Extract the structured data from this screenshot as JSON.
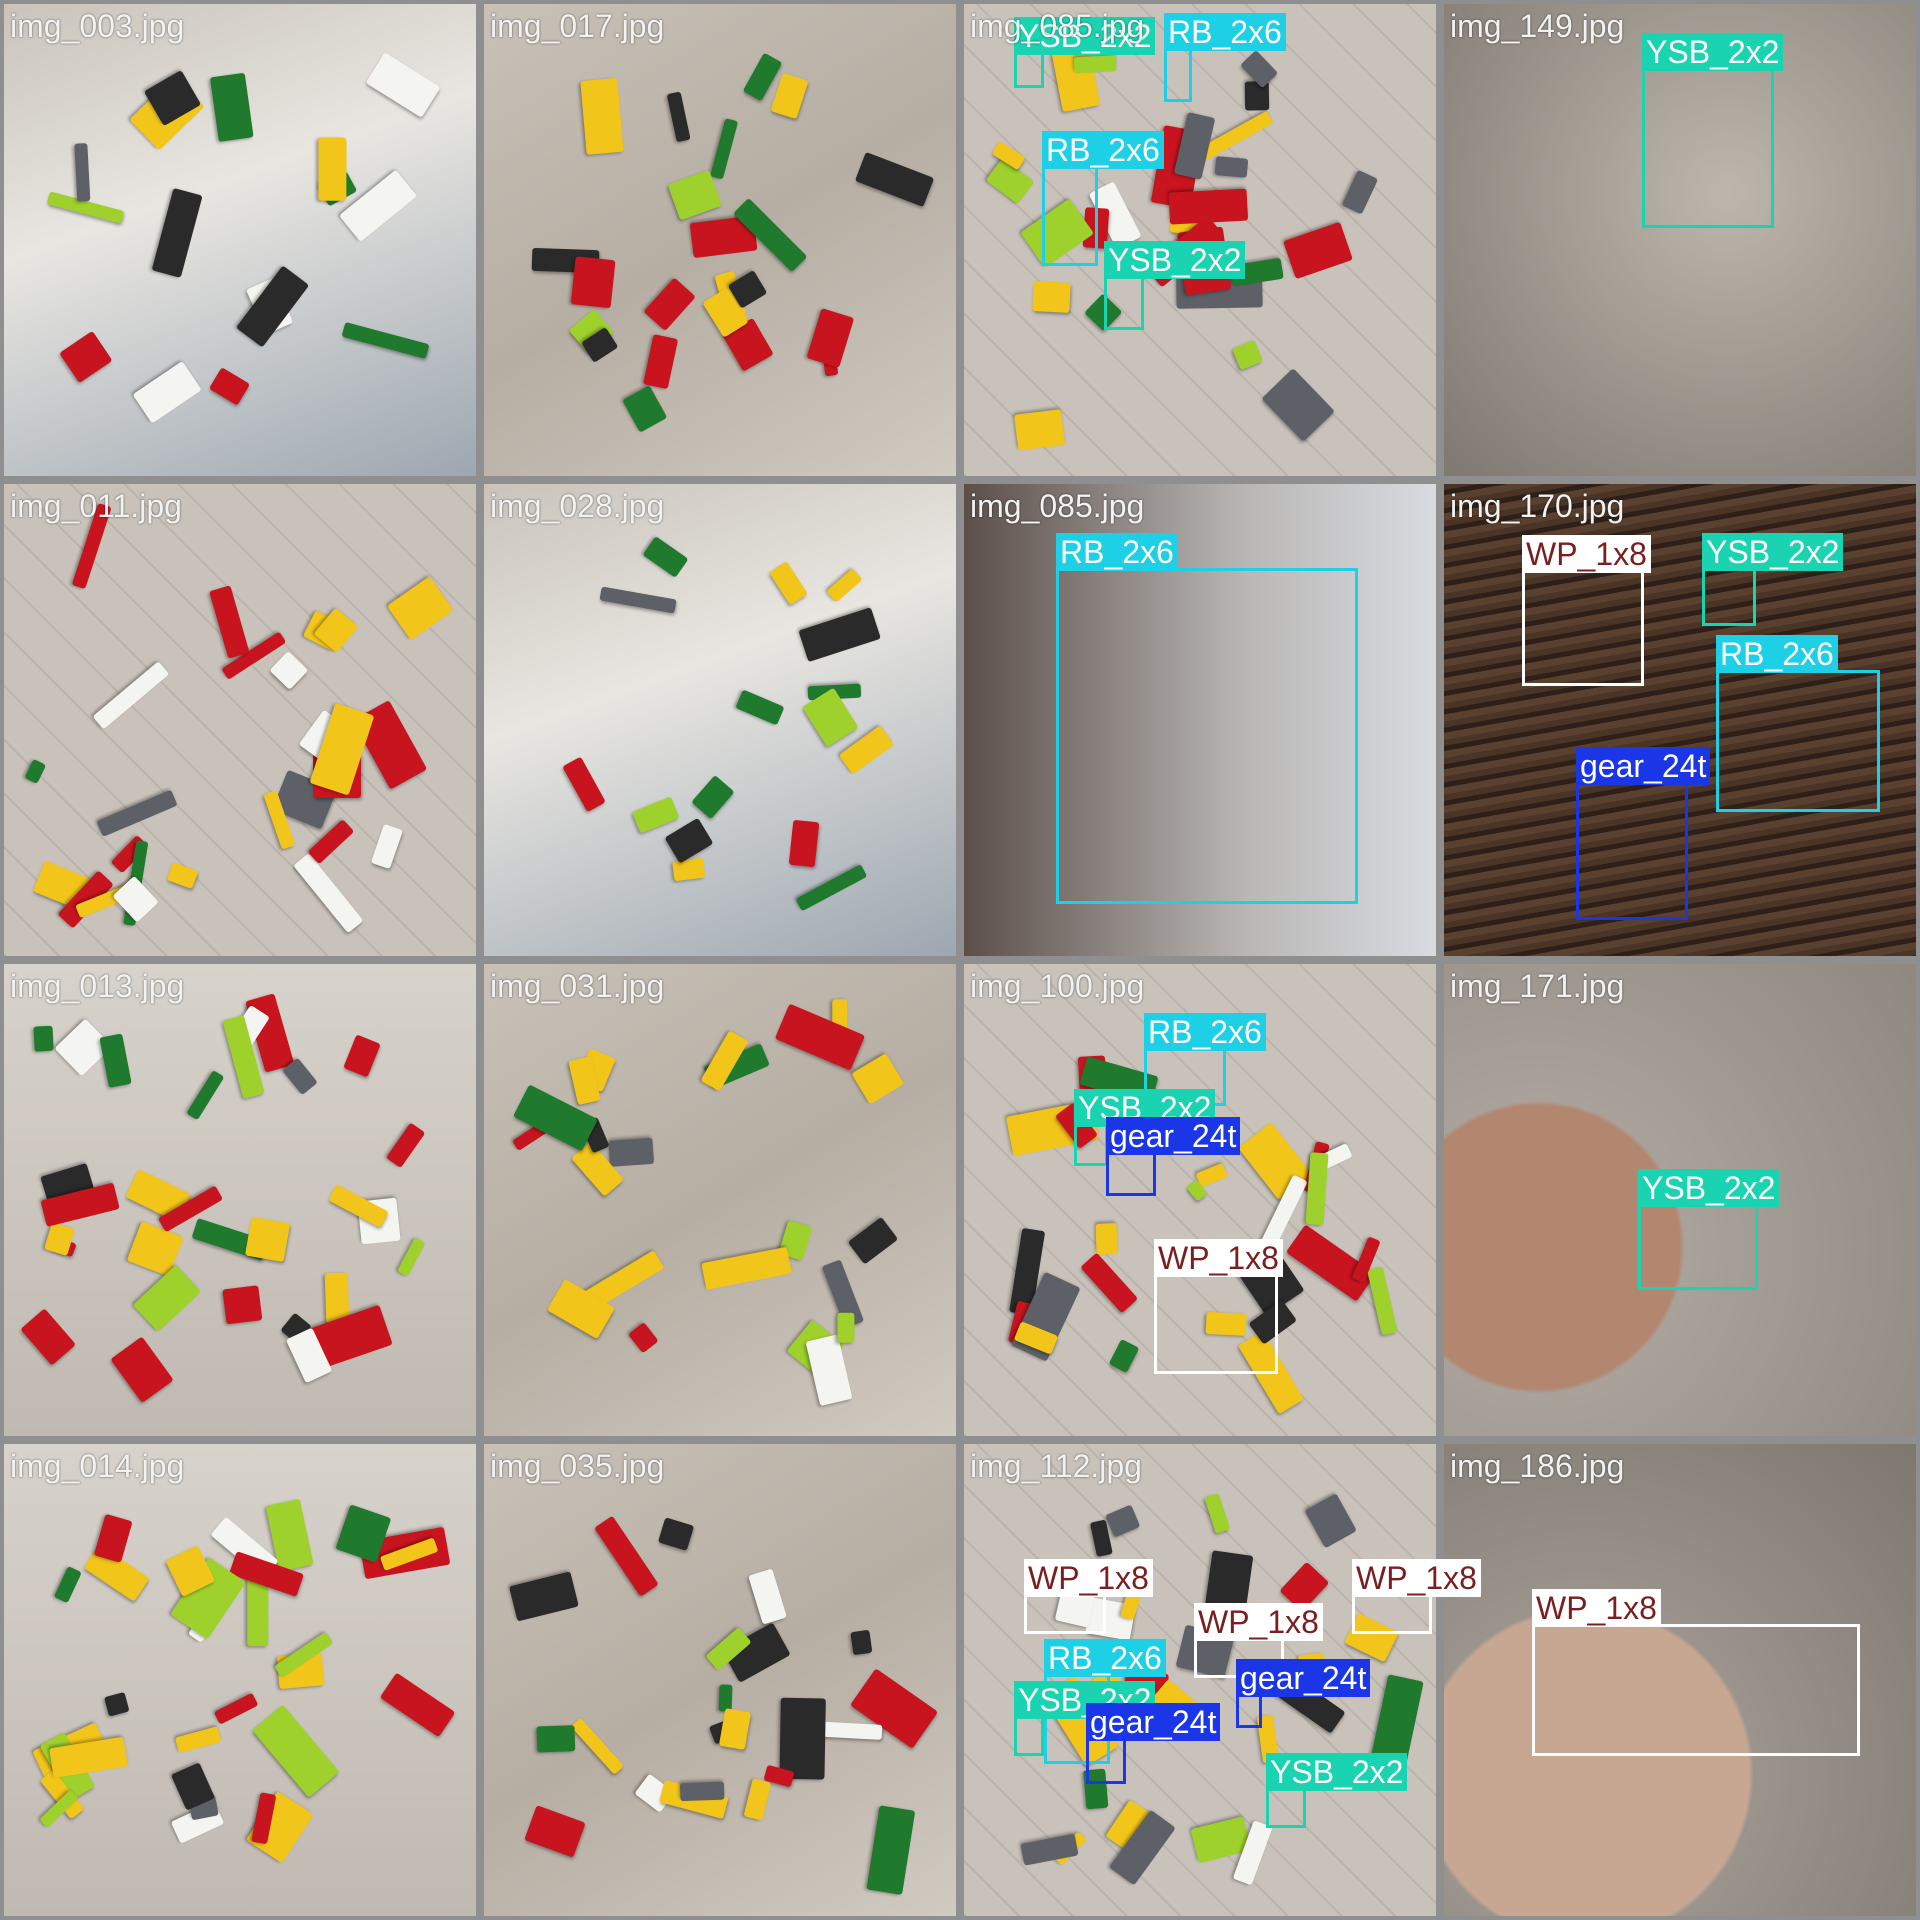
{
  "grid": {
    "cols": 4,
    "rows": 4
  },
  "classes": {
    "YSB_2x2": {
      "box": "#1ad3b0",
      "label_bg": "#1ad3b0",
      "label_fg": "#ffffff"
    },
    "RB_2x6": {
      "box": "#1ed0e6",
      "label_bg": "#1ed0e6",
      "label_fg": "#ffffff"
    },
    "WP_1x8": {
      "box": "#ffffff",
      "label_bg": "#ffffff",
      "label_fg": "#7a1f1f"
    },
    "gear_24t": {
      "box": "#1a36e6",
      "label_bg": "#1a36e6",
      "label_fg": "#ffffff"
    }
  },
  "tiles": [
    {
      "name": "img_003.jpg",
      "scene": "tray-mix",
      "detections": []
    },
    {
      "name": "img_017.jpg",
      "scene": "scatter-cloth",
      "detections": []
    },
    {
      "name": "img_085.jpg",
      "scene": "scatter-quilt",
      "detections": [
        {
          "cls": "YSB_2x2",
          "label": "YSB_2x2"
        },
        {
          "cls": "RB_2x6",
          "label": "RB_2x6"
        },
        {
          "cls": "RB_2x6",
          "label": "RB_2x6"
        },
        {
          "cls": "YSB_2x2",
          "label": "YSB_2x2"
        }
      ]
    },
    {
      "name": "img_149.jpg",
      "scene": "single-cloth",
      "detections": [
        {
          "cls": "YSB_2x2",
          "label": "YSB_2x2"
        }
      ]
    },
    {
      "name": "img_011.jpg",
      "scene": "scatter-quilt",
      "detections": []
    },
    {
      "name": "img_028.jpg",
      "scene": "tray-mix",
      "detections": []
    },
    {
      "name": "img_085.jpg",
      "scene": "hand-window",
      "detections": [
        {
          "cls": "RB_2x6",
          "label": "RB_2x6"
        }
      ]
    },
    {
      "name": "img_170.jpg",
      "scene": "wood-table",
      "detections": [
        {
          "cls": "WP_1x8",
          "label": "WP_1x8"
        },
        {
          "cls": "YSB_2x2",
          "label": "YSB_2x2"
        },
        {
          "cls": "RB_2x6",
          "label": "RB_2x6"
        },
        {
          "cls": "gear_24t",
          "label": "gear_24t"
        }
      ]
    },
    {
      "name": "img_013.jpg",
      "scene": "sorted-box",
      "detections": []
    },
    {
      "name": "img_031.jpg",
      "scene": "scatter-cloth",
      "detections": []
    },
    {
      "name": "img_100.jpg",
      "scene": "scatter-quilt",
      "detections": [
        {
          "cls": "RB_2x6",
          "label": "RB_2x6"
        },
        {
          "cls": "YSB_2x2",
          "label": "YSB_2x2"
        },
        {
          "cls": "gear_24t",
          "label": "gear_24t"
        },
        {
          "cls": "WP_1x8",
          "label": "WP_1x8"
        }
      ]
    },
    {
      "name": "img_171.jpg",
      "scene": "hand-cloth",
      "detections": [
        {
          "cls": "YSB_2x2",
          "label": "YSB_2x2"
        }
      ]
    },
    {
      "name": "img_014.jpg",
      "scene": "sorted-box",
      "detections": []
    },
    {
      "name": "img_035.jpg",
      "scene": "scatter-cloth",
      "detections": []
    },
    {
      "name": "img_112.jpg",
      "scene": "scatter-quilt",
      "detections": [
        {
          "cls": "WP_1x8",
          "label": "WP_1x8"
        },
        {
          "cls": "WP_1x8",
          "label": "WP_1x8"
        },
        {
          "cls": "WP_1x8",
          "label": "WP_1x8"
        },
        {
          "cls": "RB_2x6",
          "label": "RB_2x6"
        },
        {
          "cls": "gear_24t",
          "label": "gear_24t"
        },
        {
          "cls": "YSB_2x2",
          "label": "YSB_2x2"
        },
        {
          "cls": "gear_24t",
          "label": "gear_24t"
        },
        {
          "cls": "YSB_2x2",
          "label": "YSB_2x2"
        }
      ]
    },
    {
      "name": "img_186.jpg",
      "scene": "hand-blur",
      "detections": [
        {
          "cls": "WP_1x8",
          "label": "WP_1x8"
        }
      ]
    }
  ]
}
